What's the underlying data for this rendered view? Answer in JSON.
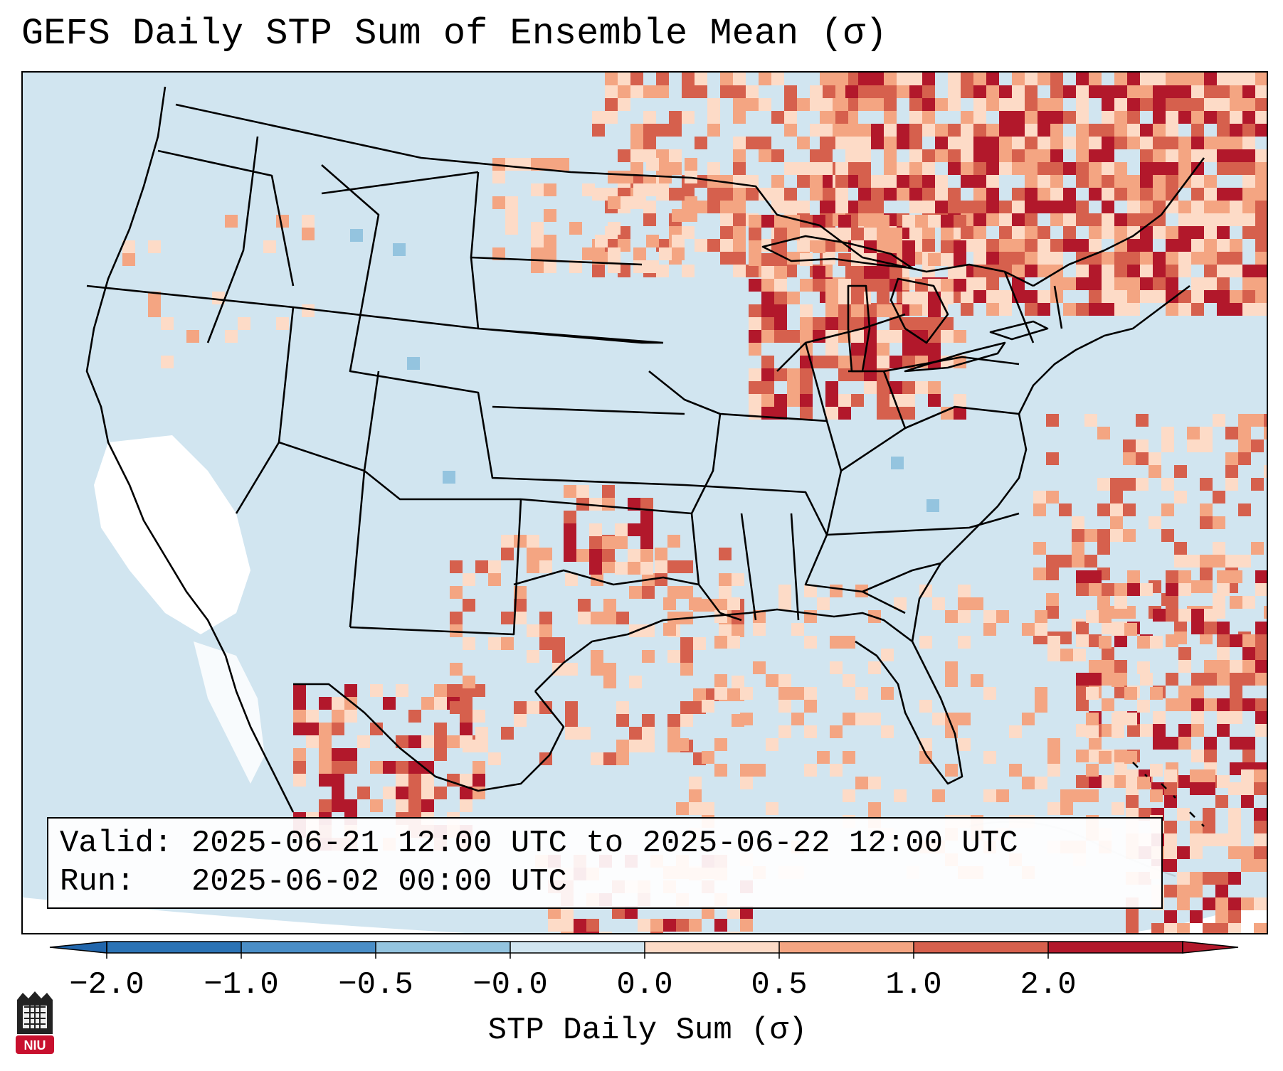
{
  "title": "GEFS Daily STP Sum of Ensemble Mean (σ)",
  "info": {
    "valid": "Valid: 2025-06-21 12:00 UTC to 2025-06-22 12:00 UTC",
    "run": "Run:   2025-06-02 00:00 UTC"
  },
  "colorbar": {
    "label": "STP Daily Sum (σ)",
    "ticks": [
      "−2.0",
      "−1.0",
      "−0.5",
      "−0.0",
      "0.0",
      "0.5",
      "1.0",
      "2.0"
    ],
    "colors": [
      "#2b73b5",
      "#4a8ec7",
      "#94c4df",
      "#d1e5f0",
      "#fddbc7",
      "#f4a582",
      "#d6604d",
      "#b2182b"
    ],
    "extend_low_color": "#2166ac",
    "extend_high_color": "#b2182b"
  },
  "map": {
    "background": "#d1e5f0",
    "land": "#d1e5f0",
    "nodata": "#ffffff"
  },
  "logo": {
    "text": "NIU"
  }
}
